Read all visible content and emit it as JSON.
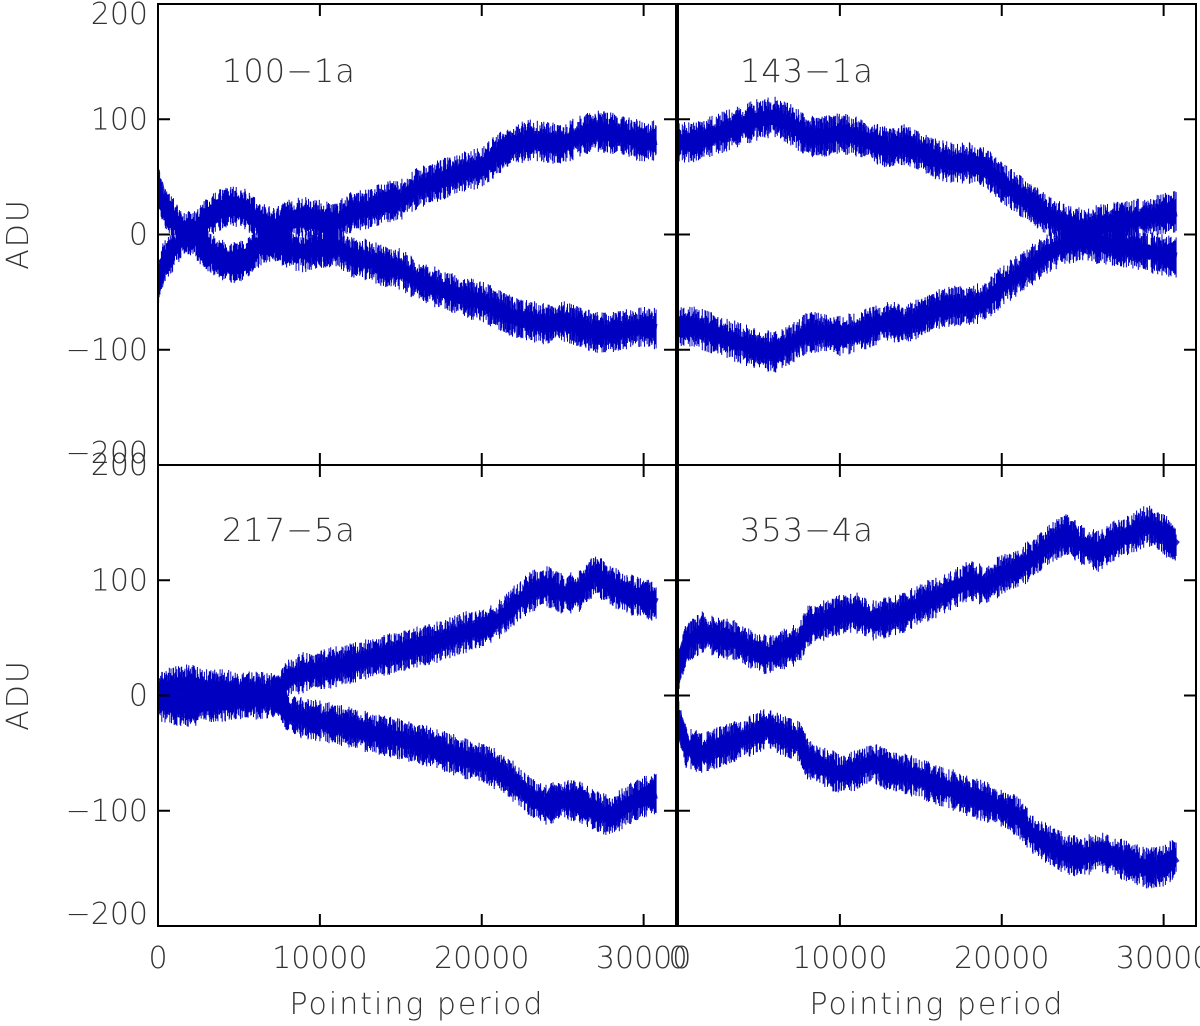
{
  "chart_data": [
    {
      "type": "line",
      "title": "100−1a",
      "xlabel": "",
      "ylabel": "ADU",
      "xlim": [
        0,
        32000
      ],
      "ylim": [
        -200,
        200
      ],
      "xticks": [
        0,
        10000,
        20000,
        30000
      ],
      "xtick_labels": [],
      "yticks": [
        -200,
        -100,
        0,
        100,
        200
      ],
      "ytick_labels": [
        "−200",
        "−100",
        "0",
        "100",
        "200"
      ],
      "color": "#0000c0",
      "series": [
        {
          "x": [
            0,
            300,
            900,
            1800,
            2700,
            3600,
            4500,
            5400,
            6300,
            7200,
            8000,
            9000,
            10000,
            11000,
            12000,
            13000,
            14000,
            15000,
            16000,
            17000,
            18000,
            19000,
            20000,
            21000,
            22000,
            23000,
            24000,
            25000,
            26000,
            27000,
            28000,
            29000,
            30000,
            30800
          ],
          "y": [
            45,
            25,
            15,
            -5,
            10,
            20,
            25,
            22,
            10,
            5,
            12,
            15,
            12,
            10,
            20,
            22,
            28,
            30,
            40,
            45,
            50,
            55,
            58,
            70,
            78,
            82,
            80,
            78,
            85,
            90,
            88,
            85,
            80,
            82
          ]
        },
        {
          "x": [
            0,
            300,
            900,
            1800,
            2700,
            3600,
            4500,
            5400,
            6300,
            7200,
            8000,
            9000,
            10000,
            11000,
            12000,
            13000,
            14000,
            15000,
            16000,
            17000,
            18000,
            19000,
            20000,
            21000,
            22000,
            23000,
            24000,
            25000,
            26000,
            27000,
            28000,
            29000,
            30000,
            30800
          ],
          "y": [
            -45,
            -25,
            -15,
            5,
            -10,
            -20,
            -25,
            -22,
            -10,
            -5,
            -12,
            -15,
            -12,
            -10,
            -20,
            -22,
            -28,
            -30,
            -40,
            -45,
            -50,
            -55,
            -58,
            -65,
            -72,
            -75,
            -78,
            -75,
            -80,
            -85,
            -85,
            -82,
            -80,
            -82
          ]
        }
      ]
    },
    {
      "type": "line",
      "title": "143−1a",
      "xlabel": "",
      "ylabel": "",
      "xlim": [
        0,
        32000
      ],
      "ylim": [
        -200,
        200
      ],
      "xticks": [
        0,
        10000,
        20000,
        30000
      ],
      "xtick_labels": [],
      "yticks": [
        -200,
        -100,
        0,
        100,
        200
      ],
      "ytick_labels": [],
      "color": "#0000c0",
      "series": [
        {
          "x": [
            0,
            1000,
            2000,
            3000,
            4000,
            5000,
            6000,
            7000,
            8000,
            9000,
            10000,
            11000,
            12000,
            13000,
            14000,
            15000,
            16000,
            17000,
            18000,
            19000,
            20000,
            21000,
            22000,
            23000,
            24000,
            25000,
            26000,
            27000,
            28000,
            29000,
            30000,
            30800
          ],
          "y": [
            80,
            80,
            85,
            90,
            95,
            100,
            102,
            95,
            85,
            85,
            88,
            85,
            80,
            75,
            78,
            72,
            65,
            62,
            62,
            58,
            45,
            35,
            25,
            15,
            8,
            5,
            8,
            10,
            12,
            15,
            18,
            20
          ]
        },
        {
          "x": [
            0,
            1000,
            2000,
            3000,
            4000,
            5000,
            6000,
            7000,
            8000,
            9000,
            10000,
            11000,
            12000,
            13000,
            14000,
            15000,
            16000,
            17000,
            18000,
            19000,
            20000,
            21000,
            22000,
            23000,
            24000,
            25000,
            26000,
            27000,
            28000,
            29000,
            30000,
            30800
          ],
          "y": [
            -80,
            -80,
            -85,
            -90,
            -95,
            -100,
            -102,
            -95,
            -85,
            -85,
            -88,
            -85,
            -80,
            -75,
            -78,
            -72,
            -65,
            -62,
            -62,
            -58,
            -45,
            -35,
            -25,
            -15,
            -8,
            -5,
            -8,
            -10,
            -12,
            -15,
            -18,
            -20
          ]
        }
      ]
    },
    {
      "type": "line",
      "title": "217−5a",
      "xlabel": "Pointing period",
      "ylabel": "ADU",
      "xlim": [
        0,
        32000
      ],
      "ylim": [
        -200,
        200
      ],
      "xticks": [
        0,
        10000,
        20000,
        30000
      ],
      "xtick_labels": [
        "0",
        "10000",
        "20000",
        "30000"
      ],
      "yticks": [
        -200,
        -100,
        0,
        100,
        200
      ],
      "ytick_labels": [
        "−200",
        "−100",
        "0",
        "100",
        "200"
      ],
      "color": "#0000c0",
      "series": [
        {
          "x": [
            0,
            1000,
            2000,
            3000,
            4000,
            5000,
            6000,
            7000,
            7500,
            8000,
            9000,
            10000,
            11000,
            12000,
            13000,
            14000,
            15000,
            16000,
            17000,
            18000,
            19000,
            20000,
            21000,
            22000,
            23000,
            24000,
            25000,
            26000,
            27000,
            28000,
            29000,
            30000,
            30800
          ],
          "y": [
            5,
            8,
            10,
            5,
            5,
            3,
            3,
            2,
            0,
            15,
            20,
            22,
            25,
            28,
            32,
            35,
            38,
            42,
            45,
            50,
            55,
            58,
            65,
            78,
            90,
            95,
            88,
            90,
            105,
            95,
            88,
            85,
            80
          ]
        },
        {
          "x": [
            0,
            1000,
            2000,
            3000,
            4000,
            5000,
            6000,
            7000,
            7500,
            8000,
            9000,
            10000,
            11000,
            12000,
            13000,
            14000,
            15000,
            16000,
            17000,
            18000,
            19000,
            20000,
            21000,
            22000,
            23000,
            24000,
            25000,
            26000,
            27000,
            28000,
            29000,
            30000,
            30800
          ],
          "y": [
            -5,
            -8,
            -10,
            -5,
            -5,
            -3,
            -3,
            -2,
            0,
            -15,
            -20,
            -22,
            -25,
            -28,
            -32,
            -35,
            -38,
            -42,
            -45,
            -50,
            -55,
            -58,
            -65,
            -75,
            -88,
            -95,
            -90,
            -92,
            -100,
            -105,
            -95,
            -88,
            -85
          ]
        }
      ]
    },
    {
      "type": "line",
      "title": "353−4a",
      "xlabel": "Pointing period",
      "ylabel": "",
      "xlim": [
        0,
        32000
      ],
      "ylim": [
        -200,
        200
      ],
      "xticks": [
        0,
        10000,
        20000,
        30000
      ],
      "xtick_labels": [
        "0",
        "10000",
        "20000",
        "30000"
      ],
      "yticks": [
        -200,
        -100,
        0,
        100,
        200
      ],
      "ytick_labels": [],
      "color": "#0000c0",
      "series": [
        {
          "x": [
            0,
            500,
            1500,
            2500,
            3500,
            4500,
            5500,
            6500,
            7500,
            8000,
            9000,
            10000,
            11000,
            12000,
            13000,
            14000,
            15000,
            16000,
            17000,
            18000,
            19000,
            20000,
            21000,
            22000,
            23000,
            24000,
            25000,
            26000,
            27000,
            28000,
            29000,
            30000,
            30800
          ],
          "y": [
            20,
            45,
            55,
            50,
            48,
            40,
            35,
            40,
            45,
            60,
            65,
            70,
            72,
            65,
            68,
            72,
            80,
            85,
            92,
            100,
            95,
            105,
            110,
            120,
            132,
            140,
            130,
            125,
            135,
            140,
            148,
            140,
            130
          ]
        },
        {
          "x": [
            0,
            500,
            1500,
            2500,
            3500,
            4500,
            5500,
            6500,
            7500,
            8000,
            9000,
            10000,
            11000,
            12000,
            13000,
            14000,
            15000,
            16000,
            17000,
            18000,
            19000,
            20000,
            21000,
            22000,
            23000,
            24000,
            25000,
            26000,
            27000,
            28000,
            29000,
            30000,
            30800
          ],
          "y": [
            -20,
            -45,
            -50,
            -45,
            -40,
            -35,
            -28,
            -35,
            -40,
            -55,
            -62,
            -68,
            -65,
            -58,
            -65,
            -68,
            -72,
            -78,
            -82,
            -88,
            -92,
            -98,
            -105,
            -122,
            -130,
            -138,
            -140,
            -135,
            -140,
            -145,
            -150,
            -148,
            -140
          ]
        }
      ]
    }
  ]
}
